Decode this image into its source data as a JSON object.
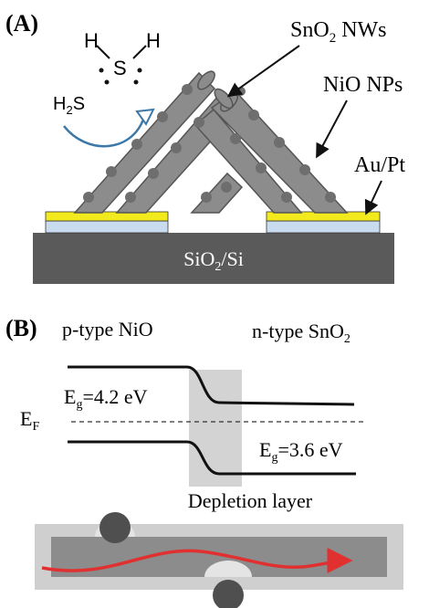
{
  "panel_a": {
    "label": "(A)",
    "molecule": {
      "h_left": "H",
      "h_right": "H",
      "s": "S"
    },
    "gas_label": {
      "main": "H",
      "sub": "2",
      "tail": "S"
    },
    "nw_label": {
      "main": "SnO",
      "sub": "2",
      "tail": " NWs"
    },
    "np_label": "NiO NPs",
    "electrode_label": "Au/Pt",
    "substrate_label": {
      "main": "SiO",
      "sub": "2",
      "tail": "/Si"
    },
    "colors": {
      "nanowire": "#8c8c8c",
      "particle": "#6e6e6e",
      "gold": "#f2ea1d",
      "electrode_base": "#c9dcef",
      "substrate": "#5a5a5a",
      "arrow": "#3c78a8"
    }
  },
  "panel_b": {
    "label": "(B)",
    "left_material": "p-type NiO",
    "right_material": {
      "main": "n-type SnO",
      "sub": "2"
    },
    "left_gap": {
      "sym": "E",
      "sub": "g",
      "value": "=4.2 eV"
    },
    "right_gap": {
      "sym": "E",
      "sub": "g",
      "value": "=3.6 eV"
    },
    "fermi": {
      "sym": "E",
      "sub": "F"
    },
    "depletion_label": "Depletion layer",
    "colors": {
      "depletion": "#d3d3d3",
      "bar": "#8c8c8c",
      "bar_shell": "#cfcfcf",
      "particle": "#4f4f4f",
      "current": "#e03030"
    }
  }
}
